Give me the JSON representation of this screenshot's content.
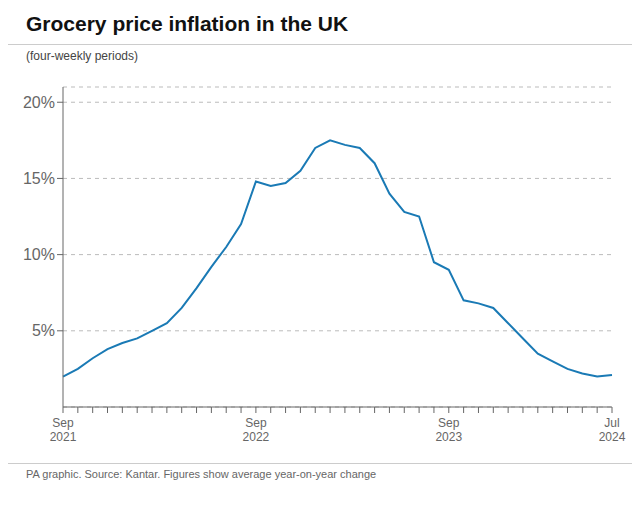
{
  "chart_data": {
    "type": "line",
    "title": "Grocery price inflation in the UK",
    "subtitle": "(four-weekly periods)",
    "footnote": "PA graphic. Source: Kantar. Figures show average year-on-year change",
    "categories": [
      "Sep\n2021",
      null,
      null,
      null,
      null,
      null,
      null,
      null,
      null,
      null,
      null,
      null,
      null,
      "Sep\n2022",
      null,
      null,
      null,
      null,
      null,
      null,
      null,
      null,
      null,
      null,
      null,
      null,
      "Sep\n2023",
      null,
      null,
      null,
      null,
      null,
      null,
      null,
      null,
      null,
      null,
      "Jul\n2024"
    ],
    "values": [
      2.0,
      2.5,
      3.2,
      3.8,
      4.2,
      4.5,
      5.0,
      5.5,
      6.5,
      7.8,
      9.2,
      10.5,
      12.0,
      14.8,
      14.5,
      14.7,
      15.5,
      17.0,
      17.5,
      17.2,
      17.0,
      16.0,
      14.0,
      12.8,
      12.5,
      9.5,
      9.0,
      7.0,
      6.8,
      6.5,
      5.5,
      4.5,
      3.5,
      3.0,
      2.5,
      2.2,
      2.0,
      2.1
    ],
    "color": "#1a7ab5",
    "ylim": [
      0,
      21
    ],
    "yticks": [
      {
        "value": 5,
        "label": "5%"
      },
      {
        "value": 10,
        "label": "10%"
      },
      {
        "value": 15,
        "label": "15%"
      },
      {
        "value": 20,
        "label": "20%"
      }
    ],
    "grid": true
  }
}
